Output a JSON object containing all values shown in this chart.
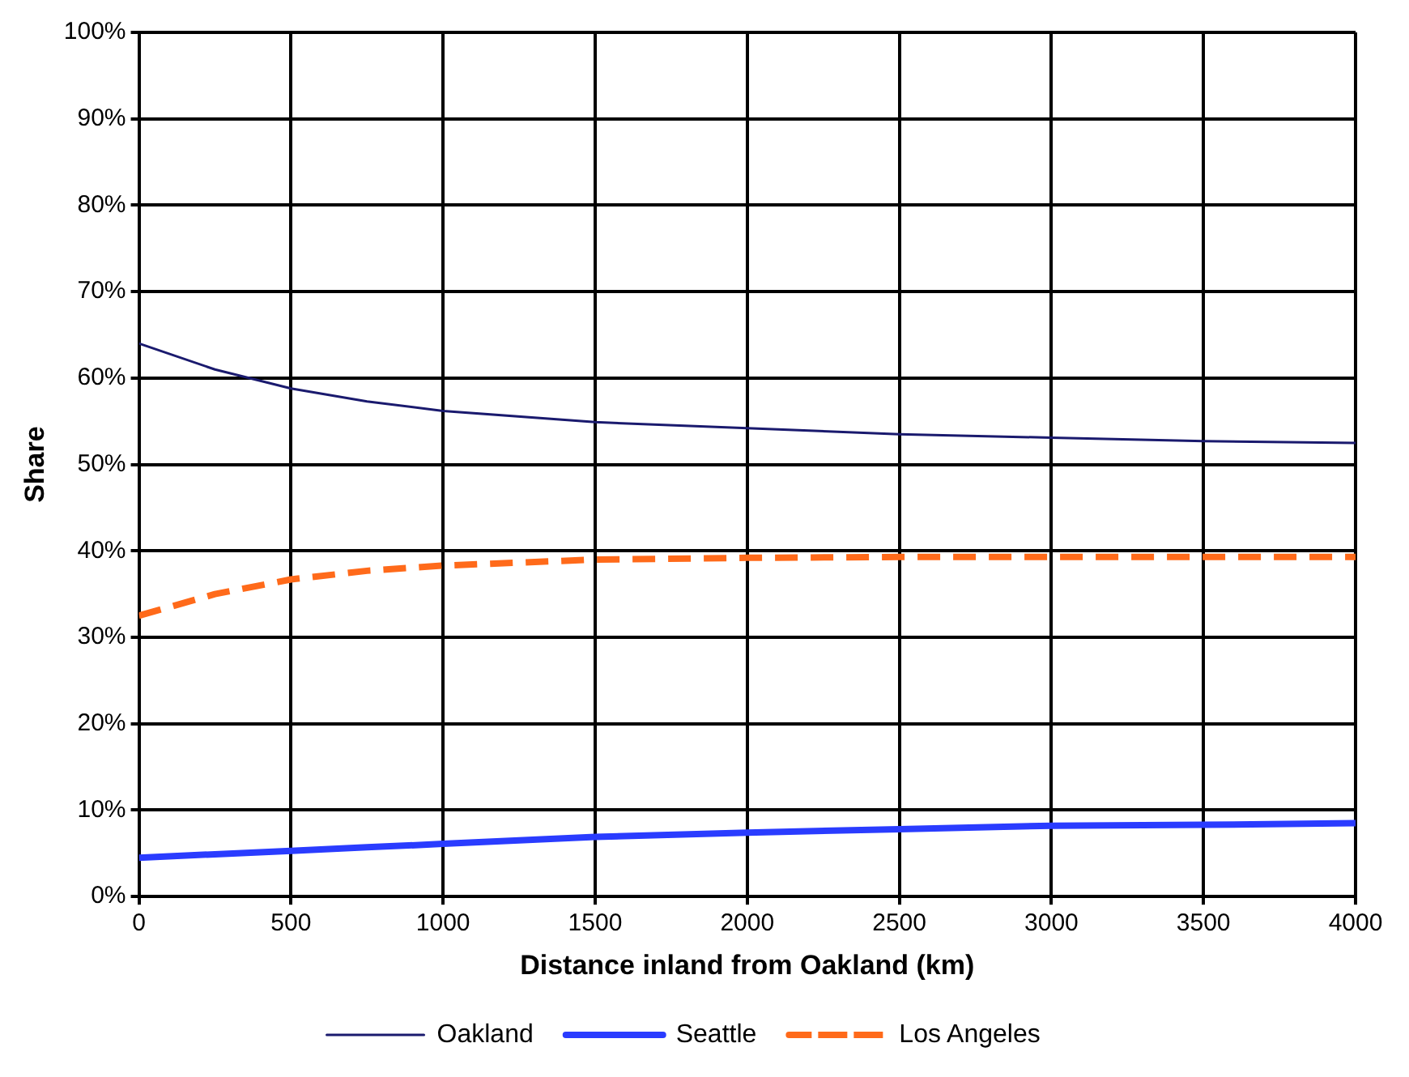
{
  "chart_data": {
    "type": "line",
    "xlabel": "Distance inland from Oakland (km)",
    "ylabel": "Share",
    "x": [
      0,
      250,
      500,
      750,
      1000,
      1500,
      2000,
      2500,
      3000,
      3500,
      4000
    ],
    "series": [
      {
        "name": "Oakland",
        "color": "#1a1a6e",
        "line_style": "solid",
        "values": [
          64,
          61,
          58.8,
          57.3,
          56.2,
          54.9,
          54.2,
          53.5,
          53.1,
          52.7,
          52.5
        ]
      },
      {
        "name": "Seattle",
        "color": "#2a3cff",
        "line_style": "solid",
        "values": [
          4.5,
          4.9,
          5.3,
          5.7,
          6.1,
          6.9,
          7.4,
          7.8,
          8.2,
          8.3,
          8.5
        ]
      },
      {
        "name": "Los Angeles",
        "color": "#ff6a1a",
        "line_style": "dashed",
        "values": [
          32.5,
          35,
          36.7,
          37.7,
          38.3,
          39,
          39.2,
          39.3,
          39.3,
          39.3,
          39.3
        ]
      }
    ],
    "xlim": [
      0,
      4000
    ],
    "xticks": [
      0,
      500,
      1000,
      1500,
      2000,
      2500,
      3000,
      3500,
      4000
    ],
    "ylim": [
      0,
      100
    ],
    "yticks": [
      {
        "value": 0,
        "label": "0%"
      },
      {
        "value": 10,
        "label": "10%"
      },
      {
        "value": 20,
        "label": "20%"
      },
      {
        "value": 30,
        "label": "30%"
      },
      {
        "value": 40,
        "label": "40%"
      },
      {
        "value": 50,
        "label": "50%"
      },
      {
        "value": 60,
        "label": "60%"
      },
      {
        "value": 70,
        "label": "70%"
      },
      {
        "value": 80,
        "label": "80%"
      },
      {
        "value": 90,
        "label": "90%"
      },
      {
        "value": 100,
        "label": "100%"
      }
    ],
    "grid": true,
    "legend": "bottom",
    "marker": "none"
  }
}
